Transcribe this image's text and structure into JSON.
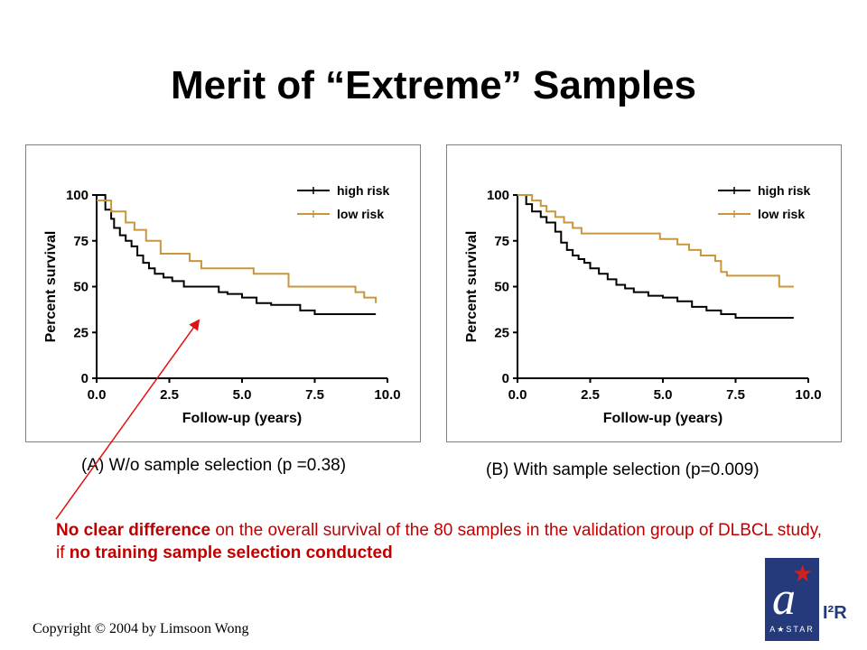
{
  "slide": {
    "title": "Merit of “Extreme” Samples",
    "caption_a": "(A) W/o sample selection (p =0.38)",
    "caption_b": "(B) With sample selection (p=0.009)",
    "note": {
      "part1": "No clear difference",
      "part2": " on the overall survival of the 80 samples in the validation group of DLBCL study, if ",
      "part3": "no training sample selection conducted"
    },
    "copyright": "Copyright © 2004 by Limsoon Wong",
    "logo": {
      "astar": "A★STAR",
      "i2r": "I²R"
    }
  },
  "colors": {
    "high_risk": "#000000",
    "low_risk": "#c8963c",
    "arrow": "#e01010",
    "note": "#c00000"
  },
  "chart_data": [
    {
      "type": "line",
      "style": "step",
      "xlabel": "Follow-up (years)",
      "ylabel": "Percent survival",
      "xlim": [
        0,
        10
      ],
      "ylim": [
        0,
        100
      ],
      "xticks": [
        "0.0",
        "2.5",
        "5.0",
        "7.5",
        "10.0"
      ],
      "yticks": [
        "0",
        "25",
        "50",
        "75",
        "100"
      ],
      "legend": "top-right",
      "series": [
        {
          "name": "high risk",
          "x": [
            0,
            0.3,
            0.5,
            0.6,
            0.8,
            1.0,
            1.2,
            1.4,
            1.6,
            1.8,
            2.0,
            2.3,
            2.6,
            3.0,
            3.0,
            4.2,
            4.5,
            5.0,
            5.5,
            6.0,
            7.0,
            7.5,
            9.6
          ],
          "y": [
            100,
            92,
            87,
            82,
            78,
            75,
            72,
            67,
            63,
            60,
            57,
            55,
            53,
            53,
            50,
            47,
            46,
            44,
            41,
            40,
            37,
            35,
            35
          ]
        },
        {
          "name": "low risk",
          "x": [
            0,
            0.5,
            1.0,
            1.3,
            1.7,
            2.2,
            3.2,
            3.6,
            4.5,
            5.4,
            5.8,
            6.2,
            6.6,
            8.6,
            8.9,
            9.2,
            9.6
          ],
          "y": [
            97,
            91,
            85,
            81,
            75,
            68,
            64,
            60,
            60,
            57,
            57,
            57,
            50,
            50,
            47,
            44,
            41
          ]
        }
      ]
    },
    {
      "type": "line",
      "style": "step",
      "xlabel": "Follow-up (years)",
      "ylabel": "Percent survival",
      "xlim": [
        0,
        10
      ],
      "ylim": [
        0,
        100
      ],
      "xticks": [
        "0.0",
        "2.5",
        "5.0",
        "7.5",
        "10.0"
      ],
      "yticks": [
        "0",
        "25",
        "50",
        "75",
        "100"
      ],
      "legend": "top-right",
      "series": [
        {
          "name": "high risk",
          "x": [
            0,
            0.3,
            0.5,
            0.8,
            1.0,
            1.3,
            1.5,
            1.7,
            1.9,
            2.1,
            2.3,
            2.5,
            2.8,
            3.1,
            3.4,
            3.7,
            4.0,
            4.5,
            5.0,
            5.5,
            6.0,
            6.5,
            7.0,
            7.5,
            9.5
          ],
          "y": [
            100,
            95,
            91,
            88,
            85,
            80,
            74,
            70,
            67,
            65,
            63,
            60,
            57,
            54,
            51,
            49,
            47,
            45,
            44,
            42,
            39,
            37,
            35,
            33,
            33
          ]
        },
        {
          "name": "low risk",
          "x": [
            0,
            0.5,
            0.8,
            1.0,
            1.3,
            1.6,
            1.9,
            2.2,
            2.5,
            3.0,
            4.0,
            4.9,
            5.3,
            5.5,
            5.9,
            6.3,
            6.8,
            7.0,
            7.2,
            8.6,
            9.0,
            9.5
          ],
          "y": [
            100,
            97,
            94,
            91,
            88,
            85,
            82,
            79,
            79,
            79,
            79,
            76,
            76,
            73,
            70,
            67,
            64,
            58,
            56,
            56,
            50,
            50
          ]
        }
      ]
    }
  ]
}
